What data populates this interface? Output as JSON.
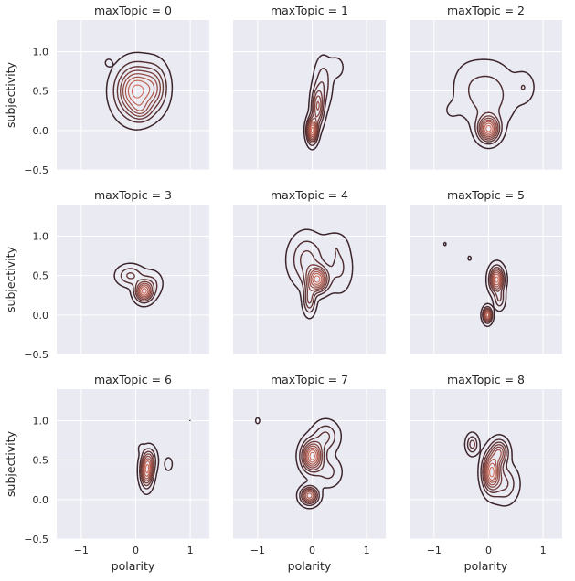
{
  "chart_data": {
    "type": "kde-contour-facet-grid",
    "facet_variable": "maxTopic",
    "xlabel": "polarity",
    "ylabel": "subjectivity",
    "xlim": [
      -1.45,
      1.35
    ],
    "ylim": [
      -0.5,
      1.4
    ],
    "xticks": [
      -1,
      0,
      1
    ],
    "yticks": [
      -0.5,
      0.0,
      0.5,
      1.0
    ],
    "xtick_labels": [
      "−1",
      "0",
      "1"
    ],
    "ytick_labels": [
      "−0.5",
      "0.0",
      "0.5",
      "1.0"
    ],
    "grid": true,
    "colors": {
      "outer": "#3a2229",
      "inner": "#d26a56",
      "panel_background": "#eaeaf2",
      "grid": "#ffffff"
    },
    "panels": [
      {
        "title": "maxTopic = 0",
        "levels": 8,
        "modes": [
          {
            "x": 0.0,
            "y": 0.5,
            "sx": 0.22,
            "sy": 0.2,
            "w": 1.0
          },
          {
            "x": 0.35,
            "y": 0.55,
            "sx": 0.15,
            "sy": 0.18,
            "w": 0.4
          },
          {
            "x": 0.1,
            "y": 0.25,
            "sx": 0.12,
            "sy": 0.08,
            "w": 0.25
          },
          {
            "x": -0.5,
            "y": 0.86,
            "sx": 0.04,
            "sy": 0.03,
            "w": 0.12
          }
        ]
      },
      {
        "title": "maxTopic = 1",
        "levels": 9,
        "modes": [
          {
            "x": 0.0,
            "y": 0.0,
            "sx": 0.06,
            "sy": 0.1,
            "w": 1.0
          },
          {
            "x": 0.1,
            "y": 0.3,
            "sx": 0.07,
            "sy": 0.15,
            "w": 0.6
          },
          {
            "x": 0.2,
            "y": 0.6,
            "sx": 0.1,
            "sy": 0.2,
            "w": 0.25
          },
          {
            "x": 0.45,
            "y": 0.8,
            "sx": 0.1,
            "sy": 0.1,
            "w": 0.1
          }
        ]
      },
      {
        "title": "maxTopic = 2",
        "levels": 9,
        "modes": [
          {
            "x": 0.0,
            "y": 0.02,
            "sx": 0.12,
            "sy": 0.1,
            "w": 1.0
          },
          {
            "x": 0.0,
            "y": 0.45,
            "sx": 0.3,
            "sy": 0.25,
            "w": 0.25
          },
          {
            "x": 0.65,
            "y": 0.55,
            "sx": 0.12,
            "sy": 0.12,
            "w": 0.15
          },
          {
            "x": -0.7,
            "y": 0.25,
            "sx": 0.12,
            "sy": 0.1,
            "w": 0.05
          },
          {
            "x": -0.4,
            "y": 0.6,
            "sx": 0.2,
            "sy": 0.2,
            "w": 0.06
          }
        ]
      },
      {
        "title": "maxTopic = 3",
        "levels": 8,
        "modes": [
          {
            "x": 0.15,
            "y": 0.3,
            "sx": 0.1,
            "sy": 0.08,
            "w": 1.0
          },
          {
            "x": -0.1,
            "y": 0.5,
            "sx": 0.15,
            "sy": 0.08,
            "w": 0.35
          },
          {
            "x": 0.3,
            "y": 0.4,
            "sx": 0.12,
            "sy": 0.1,
            "w": 0.2
          }
        ]
      },
      {
        "title": "maxTopic = 4",
        "levels": 9,
        "modes": [
          {
            "x": 0.1,
            "y": 0.45,
            "sx": 0.12,
            "sy": 0.1,
            "w": 1.0
          },
          {
            "x": -0.05,
            "y": 0.2,
            "sx": 0.07,
            "sy": 0.12,
            "w": 0.45
          },
          {
            "x": -0.1,
            "y": 0.7,
            "sx": 0.2,
            "sy": 0.2,
            "w": 0.35
          },
          {
            "x": 0.5,
            "y": 0.6,
            "sx": 0.15,
            "sy": 0.2,
            "w": 0.2
          },
          {
            "x": 0.4,
            "y": 0.9,
            "sx": 0.15,
            "sy": 0.1,
            "w": 0.1
          }
        ]
      },
      {
        "title": "maxTopic = 5",
        "levels": 8,
        "modes": [
          {
            "x": 0.15,
            "y": 0.45,
            "sx": 0.08,
            "sy": 0.1,
            "w": 1.0
          },
          {
            "x": -0.02,
            "y": 0.0,
            "sx": 0.05,
            "sy": 0.06,
            "w": 0.9
          },
          {
            "x": 0.2,
            "y": 0.2,
            "sx": 0.06,
            "sy": 0.08,
            "w": 0.3
          },
          {
            "x": -0.35,
            "y": 0.72,
            "sx": 0.03,
            "sy": 0.03,
            "w": 0.08
          },
          {
            "x": -0.8,
            "y": 0.9,
            "sx": 0.025,
            "sy": 0.03,
            "w": 0.07
          }
        ]
      },
      {
        "title": "maxTopic = 6",
        "levels": 8,
        "modes": [
          {
            "x": 0.2,
            "y": 0.35,
            "sx": 0.07,
            "sy": 0.12,
            "w": 1.0
          },
          {
            "x": 0.25,
            "y": 0.5,
            "sx": 0.08,
            "sy": 0.1,
            "w": 0.5
          },
          {
            "x": 0.6,
            "y": 0.45,
            "sx": 0.05,
            "sy": 0.06,
            "w": 0.15
          },
          {
            "x": 0.1,
            "y": 0.65,
            "sx": 0.04,
            "sy": 0.04,
            "w": 0.1
          },
          {
            "x": -0.7,
            "y": 1.0,
            "sx": 0.015,
            "sy": 0.02,
            "w": 0.07
          },
          {
            "x": 0.55,
            "y": 1.0,
            "sx": 0.015,
            "sy": 0.02,
            "w": 0.07
          },
          {
            "x": 1.0,
            "y": 1.0,
            "sx": 0.015,
            "sy": 0.02,
            "w": 0.07
          }
        ]
      },
      {
        "title": "maxTopic = 7",
        "levels": 9,
        "modes": [
          {
            "x": 0.0,
            "y": 0.55,
            "sx": 0.12,
            "sy": 0.12,
            "w": 1.0
          },
          {
            "x": -0.05,
            "y": 0.05,
            "sx": 0.1,
            "sy": 0.07,
            "w": 0.8
          },
          {
            "x": 0.25,
            "y": 0.8,
            "sx": 0.15,
            "sy": 0.12,
            "w": 0.3
          },
          {
            "x": 0.3,
            "y": 0.35,
            "sx": 0.15,
            "sy": 0.12,
            "w": 0.2
          },
          {
            "x": -1.0,
            "y": 1.0,
            "sx": 0.04,
            "sy": 0.04,
            "w": 0.08
          }
        ]
      },
      {
        "title": "maxTopic = 8",
        "levels": 9,
        "modes": [
          {
            "x": 0.05,
            "y": 0.35,
            "sx": 0.1,
            "sy": 0.15,
            "w": 1.0
          },
          {
            "x": 0.2,
            "y": 0.6,
            "sx": 0.1,
            "sy": 0.1,
            "w": 0.6
          },
          {
            "x": -0.3,
            "y": 0.7,
            "sx": 0.07,
            "sy": 0.08,
            "w": 0.35
          },
          {
            "x": 0.3,
            "y": 0.2,
            "sx": 0.15,
            "sy": 0.15,
            "w": 0.3
          }
        ]
      }
    ]
  }
}
